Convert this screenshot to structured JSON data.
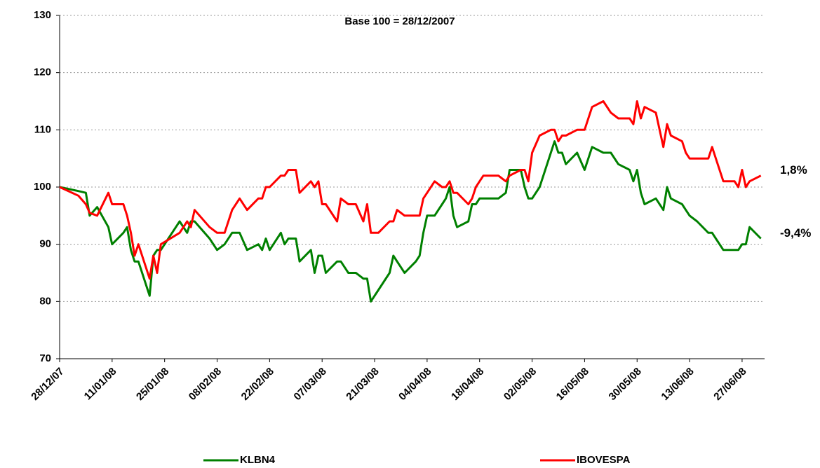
{
  "chart_data": {
    "type": "line",
    "title": "Base 100 = 28/12/2007",
    "x": [
      "28/12/07",
      "02/01/08",
      "04/01/08",
      "05/01/08",
      "07/01/08",
      "10/01/08",
      "11/01/08",
      "14/01/08",
      "15/01/08",
      "16/01/08",
      "17/01/08",
      "18/01/08",
      "21/01/08",
      "22/01/08",
      "23/01/08",
      "24/01/08",
      "29/01/08",
      "31/01/08",
      "01/02/08",
      "02/02/08",
      "06/02/08",
      "08/02/08",
      "10/02/08",
      "12/02/08",
      "14/02/08",
      "16/02/08",
      "19/02/08",
      "20/02/08",
      "21/02/08",
      "22/02/08",
      "25/02/08",
      "26/02/08",
      "27/02/08",
      "29/02/08",
      "01/03/08",
      "04/03/08",
      "05/03/08",
      "06/03/08",
      "07/03/08",
      "08/03/08",
      "11/03/08",
      "12/03/08",
      "14/03/08",
      "16/03/08",
      "18/03/08",
      "19/03/08",
      "20/03/08",
      "22/03/08",
      "25/03/08",
      "26/03/08",
      "27/03/08",
      "29/03/08",
      "01/04/08",
      "02/04/08",
      "03/04/08",
      "04/04/08",
      "06/04/08",
      "08/04/08",
      "09/04/08",
      "10/04/08",
      "11/04/08",
      "12/04/08",
      "15/04/08",
      "16/04/08",
      "17/04/08",
      "18/04/08",
      "19/04/08",
      "23/04/08",
      "25/04/08",
      "26/04/08",
      "29/04/08",
      "30/04/08",
      "01/05/08",
      "02/05/08",
      "04/05/08",
      "07/05/08",
      "08/05/08",
      "09/05/08",
      "10/05/08",
      "11/05/08",
      "14/05/08",
      "16/05/08",
      "18/05/08",
      "21/05/08",
      "23/05/08",
      "25/05/08",
      "28/05/08",
      "29/05/08",
      "30/05/08",
      "31/05/08",
      "01/06/08",
      "04/06/08",
      "06/06/08",
      "07/06/08",
      "08/06/08",
      "11/06/08",
      "12/06/08",
      "13/06/08",
      "15/06/08",
      "18/06/08",
      "19/06/08",
      "20/06/08",
      "22/06/08",
      "25/06/08",
      "26/06/08",
      "27/06/08",
      "28/06/08",
      "29/06/08",
      "02/07/08"
    ],
    "series": [
      {
        "name": "KLBN4",
        "color": "#008000",
        "end_label": "-9,4%",
        "values": [
          100,
          99.3,
          99,
          95,
          96.5,
          93,
          90,
          92,
          93,
          89,
          87,
          87,
          81,
          88,
          89,
          89,
          94,
          92,
          94,
          94,
          91,
          89,
          90,
          92,
          92,
          89,
          90,
          89,
          91,
          89,
          92,
          90,
          91,
          91,
          87,
          89,
          85,
          88,
          88,
          85,
          87,
          87,
          85,
          85,
          84,
          84,
          80,
          82,
          85,
          88,
          87,
          85,
          87,
          88,
          92,
          95,
          95,
          97,
          98,
          100,
          95,
          93,
          94,
          97,
          97,
          98,
          98,
          98,
          99,
          103,
          103,
          100,
          98,
          98,
          100,
          106,
          108,
          106,
          106,
          104,
          106,
          103,
          107,
          106,
          106,
          104,
          103,
          101,
          103,
          99,
          97,
          98,
          96,
          100,
          98,
          97,
          96,
          95,
          94,
          92,
          92,
          91,
          89,
          89,
          89,
          90,
          90,
          93,
          91
        ]
      },
      {
        "name": "IBOVESPA",
        "color": "#ff0000",
        "end_label": "1,8%",
        "values": [
          100,
          98.5,
          97,
          95.5,
          95,
          99,
          97,
          97,
          95,
          92,
          88,
          90,
          84,
          88,
          85,
          90,
          92,
          94,
          93,
          96,
          93,
          92,
          92,
          96,
          98,
          96,
          98,
          98,
          100,
          100,
          102,
          102,
          103,
          103,
          99,
          101,
          100,
          101,
          97,
          97,
          94,
          98,
          97,
          97,
          94,
          97,
          92,
          92,
          94,
          94,
          96,
          95,
          95,
          95,
          98,
          99,
          101,
          100,
          100,
          101,
          99,
          99,
          97,
          98,
          100,
          101,
          102,
          102,
          101,
          102,
          103,
          103,
          101,
          106,
          109,
          110,
          110,
          108,
          109,
          109,
          110,
          110,
          114,
          115,
          113,
          112,
          112,
          111,
          115,
          112,
          114,
          113,
          107,
          111,
          109,
          108,
          106,
          105,
          105,
          105,
          107,
          105,
          101,
          101,
          100,
          103,
          100,
          101,
          102
        ]
      }
    ],
    "xlim": [
      "28/12/07",
      "03/07/08"
    ],
    "xticks": [
      "28/12/07",
      "11/01/08",
      "25/01/08",
      "08/02/08",
      "22/02/08",
      "07/03/08",
      "21/03/08",
      "04/04/08",
      "18/04/08",
      "02/05/08",
      "16/05/08",
      "30/05/08",
      "13/06/08",
      "27/06/08"
    ],
    "ylim": [
      70,
      130
    ],
    "yticks": [
      70,
      80,
      90,
      100,
      110,
      120,
      130
    ],
    "grid": true,
    "legend": "bottom"
  }
}
